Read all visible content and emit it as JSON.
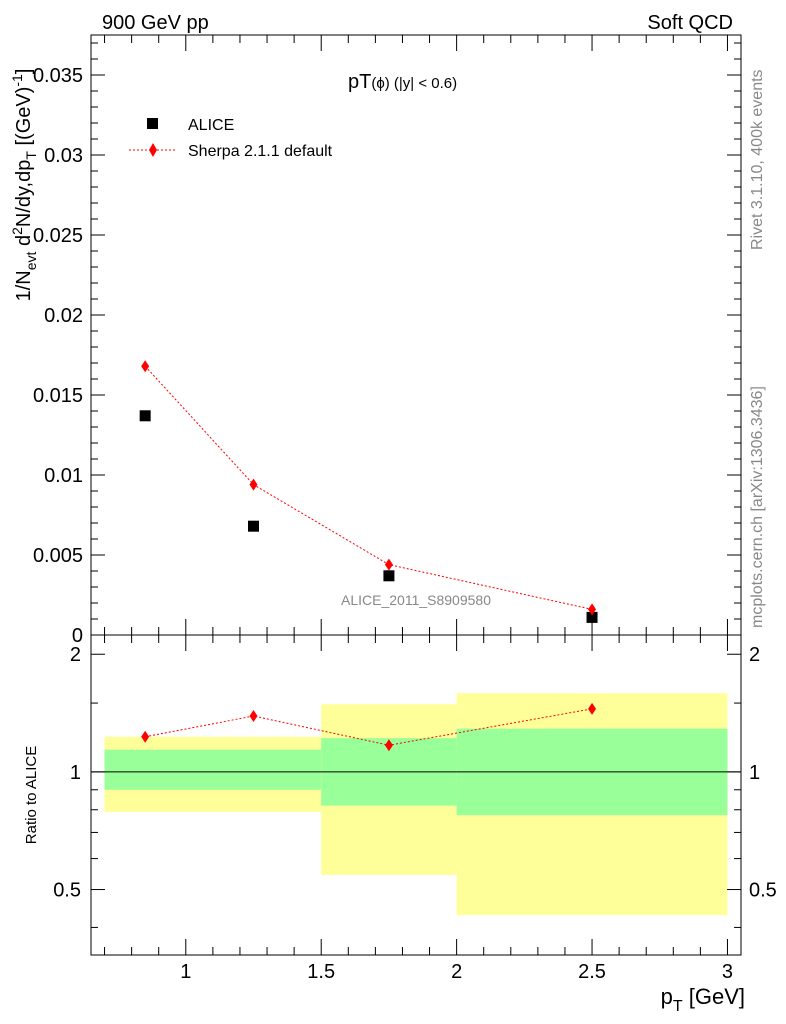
{
  "header": {
    "left": "900 GeV pp",
    "right": "Soft QCD"
  },
  "side": {
    "rivet": "Rivet 3.1.10,  400k events",
    "mcplots": "mcplots.cern.ch [arXiv:1306.3436]"
  },
  "colors": {
    "sherpa": "#ff0000",
    "green_band": "#99ff99",
    "yellow_band": "#ffff99",
    "data_marker": "#000000",
    "watermark": "#888888"
  },
  "chart_data": [
    {
      "type": "scatter",
      "panel": "main",
      "title_main": "pT",
      "title_sub": "(ϕ) (|y| < 0.6)",
      "ylabel": "1/N_evt d²N/dy,dp_T [(GeV)⁻¹]",
      "ylim": [
        0,
        0.0375
      ],
      "xlim": [
        0.65,
        3.05
      ],
      "yticks": [
        0,
        0.005,
        0.01,
        0.015,
        0.02,
        0.025,
        0.03,
        0.035
      ],
      "ytick_labels": [
        "0",
        "0.005",
        "0.01",
        "0.015",
        "0.02",
        "0.025",
        "0.03",
        "0.035"
      ],
      "watermark": "ALICE_2011_S8909580",
      "legend": {
        "position": "top-left",
        "entries": [
          "ALICE",
          "Sherpa 2.1.1 default"
        ]
      },
      "series": [
        {
          "name": "ALICE",
          "x": [
            0.85,
            1.25,
            1.75,
            2.5
          ],
          "y": [
            0.0137,
            0.0068,
            0.0037,
            0.0011
          ]
        },
        {
          "name": "Sherpa 2.1.1 default",
          "x": [
            0.85,
            1.25,
            1.75,
            2.5
          ],
          "y": [
            0.0168,
            0.0094,
            0.0044,
            0.0016
          ],
          "yerr": [
            0.0003,
            0.0002,
            0.0001,
            0.0001
          ]
        }
      ]
    },
    {
      "type": "scatter",
      "panel": "ratio",
      "ylabel": "Ratio to ALICE",
      "xlabel": "p_T [GeV]",
      "xlim": [
        0.65,
        3.05
      ],
      "ylim": [
        0.34,
        2.24
      ],
      "xticks": [
        1,
        1.5,
        2,
        2.5,
        3
      ],
      "xtick_labels": [
        "1",
        "1.5",
        "2",
        "2.5",
        "3"
      ],
      "yticks": [
        0.5,
        1,
        2
      ],
      "ytick_labels": [
        "0.5",
        "1",
        "2"
      ],
      "bins": [
        {
          "lo": 0.7,
          "hi": 1.5,
          "green": [
            0.9,
            1.14
          ],
          "yellow": [
            0.79,
            1.23
          ]
        },
        {
          "lo": 1.5,
          "hi": 2.0,
          "green": [
            0.82,
            1.22
          ],
          "yellow": [
            0.545,
            1.49
          ]
        },
        {
          "lo": 2.0,
          "hi": 3.0,
          "green": [
            0.775,
            1.29
          ],
          "yellow": [
            0.43,
            1.59
          ]
        }
      ],
      "series": [
        {
          "name": "Sherpa / ALICE",
          "x": [
            0.85,
            1.25,
            1.75,
            2.5
          ],
          "y": [
            1.23,
            1.39,
            1.17,
            1.45
          ],
          "yerr": [
            0.02,
            0.02,
            0.02,
            0.03
          ]
        }
      ]
    }
  ]
}
